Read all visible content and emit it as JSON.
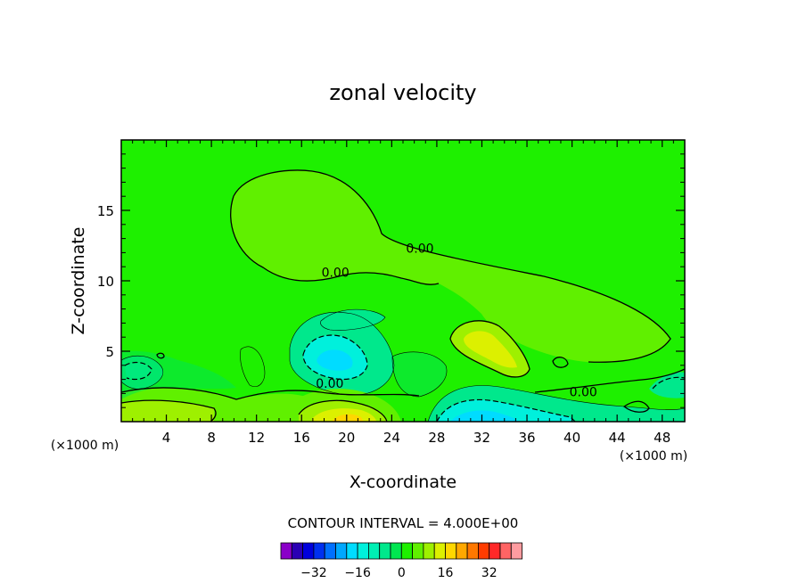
{
  "chart_data": {
    "type": "contour",
    "title": "zonal velocity",
    "xlabel": "X-coordinate",
    "ylabel": "Z-coordinate",
    "x_unit": "(×1000 m)",
    "x_unit_right": "(×1000 m)",
    "xlim": [
      0,
      50
    ],
    "ylim": [
      0,
      20
    ],
    "x_ticks": [
      4,
      8,
      12,
      16,
      20,
      24,
      28,
      32,
      36,
      40,
      44,
      48
    ],
    "y_ticks": [
      5,
      10,
      15
    ],
    "background_level": 0,
    "contour_interval_label": "CONTOUR INTERVAL = 4.000E+00",
    "contour_labels": [
      {
        "text": "0.00",
        "x": 26.5,
        "y": 12.0
      },
      {
        "text": "0.00",
        "x": 19.0,
        "y": 10.3
      },
      {
        "text": "0.00",
        "x": 18.5,
        "y": 2.4
      },
      {
        "text": "0.00",
        "x": 41.0,
        "y": 1.8
      }
    ],
    "features": [
      {
        "kind": "positive",
        "level": 4,
        "x": 16,
        "y": 14,
        "desc": "upper-level bulb"
      },
      {
        "kind": "positive",
        "level": 12,
        "x": 32,
        "y": 5.5
      },
      {
        "kind": "negative",
        "level": -8,
        "x": 19,
        "y": 4.5
      },
      {
        "kind": "negative",
        "level": -12,
        "x": 32,
        "y": 0.6
      },
      {
        "kind": "positive",
        "level": 20,
        "x": 20,
        "y": 0.5
      }
    ],
    "colorbar": {
      "tick_labels": [
        "-32",
        "-16",
        "0",
        "16",
        "32"
      ],
      "colors": [
        "#8a00c8",
        "#2a00b4",
        "#0000dc",
        "#0030f0",
        "#0070ff",
        "#00a8ff",
        "#00dcff",
        "#00f0dc",
        "#00f0b4",
        "#00e88c",
        "#00e650",
        "#1ef000",
        "#60f000",
        "#9ef000",
        "#dcf000",
        "#ffd700",
        "#ffa800",
        "#ff7800",
        "#ff3c00",
        "#ff2828",
        "#ff6464",
        "#ff9ca0"
      ]
    }
  }
}
